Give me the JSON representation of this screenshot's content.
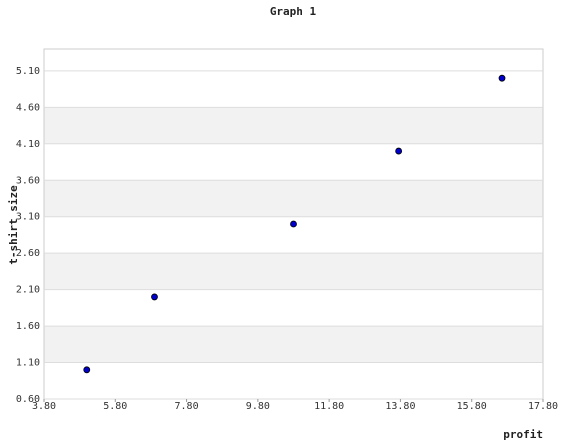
{
  "chart_data": {
    "type": "scatter",
    "title": "Graph 1",
    "x_label": "profit",
    "y_label": "t-shirt size",
    "series": [
      {
        "name": "t-shirt size",
        "color": "#0000cc",
        "x": [
          5,
          6.9,
          10.8,
          13.75,
          16.65
        ],
        "values": [
          1,
          2,
          3,
          4,
          5
        ]
      }
    ],
    "xlim": [
      3.8,
      17.8
    ],
    "xticks": [
      {
        "value": 3.8,
        "label": "3.80"
      },
      {
        "value": 5.8,
        "label": "5.80"
      },
      {
        "value": 7.8,
        "label": "7.80"
      },
      {
        "value": 9.8,
        "label": "9.80"
      },
      {
        "value": 11.8,
        "label": "11.80"
      },
      {
        "value": 13.8,
        "label": "13.80"
      },
      {
        "value": 15.8,
        "label": "15.80"
      },
      {
        "value": 17.8,
        "label": "17.80"
      }
    ],
    "ylim": [
      0.6,
      5.4
    ],
    "yticks": [
      {
        "value": 0.6,
        "label": "0.60"
      },
      {
        "value": 1.1,
        "label": "1.10"
      },
      {
        "value": 1.6,
        "label": "1.60"
      },
      {
        "value": 2.1,
        "label": "2.10"
      },
      {
        "value": 2.6,
        "label": "2.60"
      },
      {
        "value": 3.1,
        "label": "3.10"
      },
      {
        "value": 3.6,
        "label": "3.60"
      },
      {
        "value": 4.1,
        "label": "4.10"
      },
      {
        "value": 4.6,
        "label": "4.60"
      },
      {
        "value": 5.1,
        "label": "5.10"
      }
    ],
    "grid": true
  }
}
